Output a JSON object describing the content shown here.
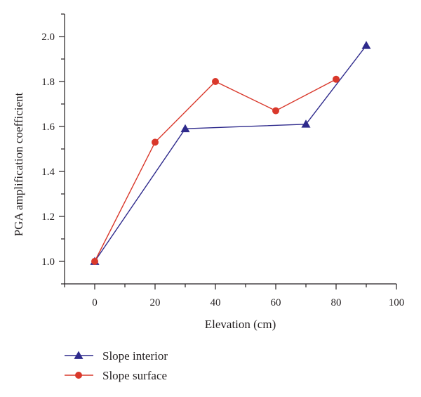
{
  "chart_data": {
    "type": "line",
    "xlabel": "Elevation (cm)",
    "ylabel": "PGA amplification coefficient",
    "xlim": [
      -10,
      100
    ],
    "ylim": [
      0.9,
      2.1
    ],
    "x_ticks": [
      0,
      20,
      40,
      60,
      80,
      100
    ],
    "x_tick_labels": [
      "0",
      "20",
      "40",
      "60",
      "80",
      "100"
    ],
    "y_ticks": [
      1.0,
      1.2,
      1.4,
      1.6,
      1.8,
      2.0
    ],
    "y_tick_labels": [
      "1.0",
      "1.2",
      "1.4",
      "1.6",
      "1.8",
      "2.0"
    ],
    "legend_position": "bottom-left",
    "grid": false,
    "series": [
      {
        "name": "Slope interior",
        "marker": "triangle",
        "color": "#2e2a8c",
        "x": [
          0,
          30,
          70,
          90
        ],
        "y": [
          1.0,
          1.59,
          1.61,
          1.96
        ]
      },
      {
        "name": "Slope surface",
        "marker": "circle",
        "color": "#d9382b",
        "x": [
          0,
          20,
          40,
          60,
          80
        ],
        "y": [
          1.0,
          1.53,
          1.8,
          1.67,
          1.81
        ]
      }
    ]
  }
}
